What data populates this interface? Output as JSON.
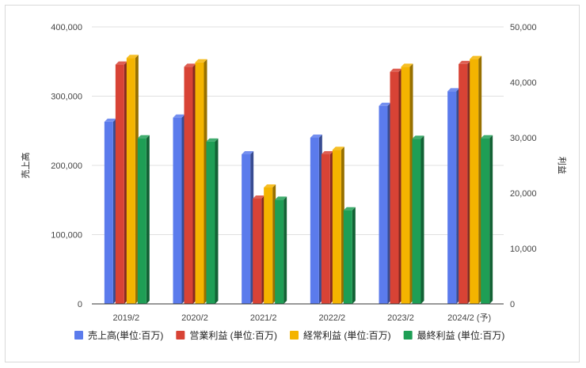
{
  "chart_data": {
    "type": "bar",
    "style": "3d-clustered-column",
    "categories": [
      "2019/2",
      "2020/2",
      "2021/2",
      "2022/2",
      "2023/2",
      "2024/2 (予)"
    ],
    "series": [
      {
        "name": "売上高(単位:百万)",
        "axis": "left",
        "color": "#5b7bec",
        "values": [
          263000,
          269000,
          216000,
          240000,
          286000,
          307000
        ]
      },
      {
        "name": "営業利益 (単位:百万)",
        "axis": "right",
        "color": "#d84335",
        "values": [
          43200,
          42800,
          19000,
          27000,
          41900,
          43300
        ]
      },
      {
        "name": "経常利益 (単位:百万)",
        "axis": "right",
        "color": "#f4b400",
        "values": [
          44400,
          43600,
          21000,
          27800,
          42800,
          44200
        ]
      },
      {
        "name": "最終利益 (単位:百万)",
        "axis": "right",
        "color": "#1e9e55",
        "values": [
          29900,
          29300,
          18800,
          16900,
          29800,
          29900
        ]
      }
    ],
    "y_left": {
      "label": "売上高",
      "min": 0,
      "max": 400000,
      "ticks": [
        "0",
        "100,000",
        "200,000",
        "300,000",
        "400,000"
      ]
    },
    "y_right": {
      "label": "利益",
      "min": 0,
      "max": 50000,
      "ticks": [
        "0",
        "10,000",
        "20,000",
        "30,000",
        "40,000",
        "50,000"
      ]
    },
    "grid": true,
    "legend_position": "bottom"
  }
}
